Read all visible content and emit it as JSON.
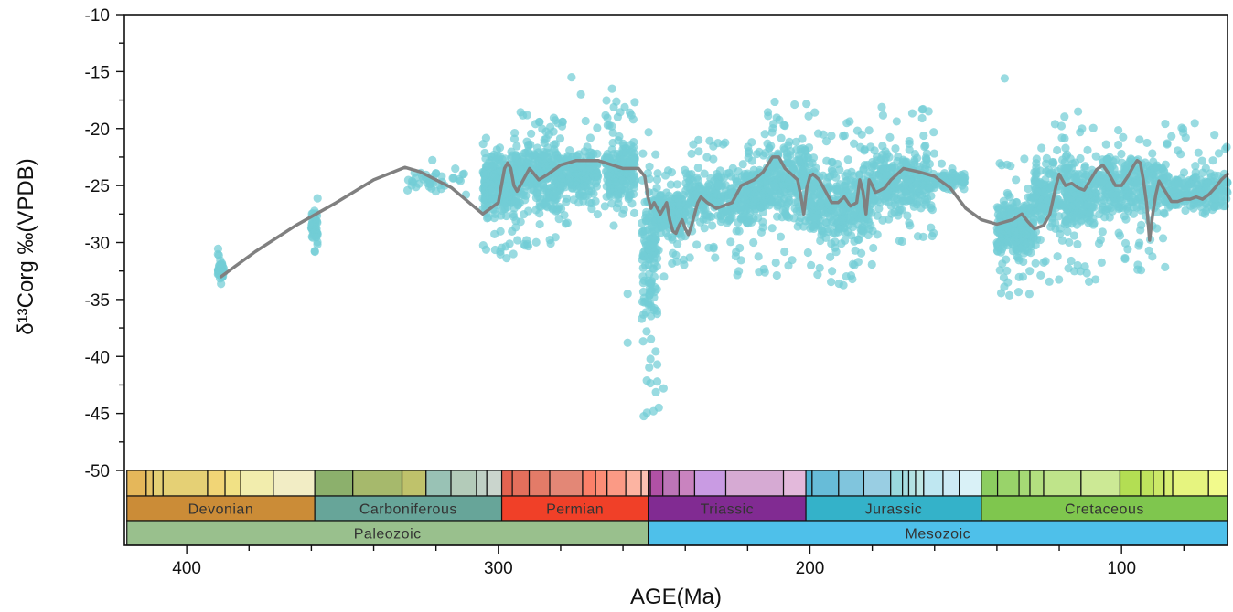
{
  "chart_data": {
    "type": "scatter",
    "xlabel": "AGE(Ma)",
    "ylabel": "δ¹³Corg ‰(VPDB)",
    "x_reversed": true,
    "xlim": [
      420,
      66
    ],
    "ylim": [
      -50,
      -10
    ],
    "x_ticks": [
      400,
      300,
      200,
      100
    ],
    "y_ticks": [
      -10,
      -15,
      -20,
      -25,
      -30,
      -35,
      -40,
      -45,
      -50
    ],
    "colors": {
      "points": "#72cdd6",
      "curve": "#808080"
    },
    "trend_curve": {
      "x": [
        389,
        378,
        365,
        352,
        340,
        330,
        325,
        315,
        305,
        300,
        298,
        297,
        296,
        295,
        294,
        292,
        290,
        287,
        284,
        280,
        275,
        268,
        260,
        255,
        253,
        252,
        251,
        250,
        249,
        248,
        247,
        246,
        245,
        244,
        243,
        242,
        241,
        240,
        239,
        238,
        237,
        236,
        235,
        233,
        230,
        225,
        222,
        218,
        215,
        212,
        210,
        208,
        206,
        204,
        203,
        202,
        201,
        200,
        199,
        197,
        195,
        193,
        191,
        189,
        187,
        185,
        184,
        183,
        182,
        181,
        180,
        179,
        178,
        176,
        174,
        172,
        170,
        165,
        160,
        155,
        150,
        145,
        140,
        135,
        132,
        130,
        128,
        125,
        123,
        121,
        120,
        119,
        118,
        116,
        114,
        112,
        110,
        108,
        106,
        104,
        102,
        100,
        98,
        96,
        95,
        94,
        93,
        92,
        91,
        90,
        89,
        88,
        86,
        84,
        82,
        80,
        78,
        76,
        74,
        72,
        70,
        68,
        66
      ],
      "y": [
        -33,
        -30.8,
        -28.5,
        -26.5,
        -24.5,
        -23.4,
        -23.8,
        -25.2,
        -27.5,
        -26.5,
        -23.5,
        -23.0,
        -23.5,
        -25.0,
        -25.5,
        -24.5,
        -23.5,
        -24.5,
        -24.0,
        -23.2,
        -22.8,
        -22.8,
        -23.5,
        -23.5,
        -24.2,
        -26.0,
        -27.0,
        -26.5,
        -27.0,
        -27.5,
        -27.0,
        -26.5,
        -28.0,
        -29.0,
        -29.2,
        -28.5,
        -28.0,
        -28.8,
        -29.3,
        -28.5,
        -27.5,
        -26.5,
        -26.0,
        -26.5,
        -27.0,
        -26.5,
        -25.0,
        -24.5,
        -23.8,
        -22.5,
        -22.5,
        -23.5,
        -24.0,
        -24.5,
        -25.8,
        -27.5,
        -25.2,
        -24.2,
        -24.0,
        -24.5,
        -25.5,
        -26.5,
        -26.5,
        -26.0,
        -26.8,
        -26.5,
        -24.5,
        -25.5,
        -27.5,
        -24.5,
        -25.0,
        -25.6,
        -25.5,
        -25.2,
        -24.5,
        -24.0,
        -23.5,
        -23.8,
        -24.2,
        -25.2,
        -27.0,
        -28.0,
        -28.4,
        -28.0,
        -27.5,
        -28.2,
        -28.8,
        -28.5,
        -27.5,
        -25.0,
        -24.0,
        -24.5,
        -25.0,
        -24.8,
        -25.2,
        -25.4,
        -24.5,
        -23.6,
        -23.2,
        -24.0,
        -25.0,
        -25.0,
        -24.2,
        -23.2,
        -22.8,
        -23.0,
        -24.5,
        -26.5,
        -29.8,
        -27.5,
        -25.8,
        -24.6,
        -25.5,
        -26.4,
        -26.4,
        -26.2,
        -26.2,
        -26.0,
        -26.2,
        -25.8,
        -25.2,
        -24.5,
        -24.0
      ]
    },
    "scatter_clusters": [
      {
        "x": [
          388,
          390
        ],
        "y_center": -32.5,
        "y_range": [
          -34.5,
          -30.5
        ],
        "count": 40
      },
      {
        "x": [
          358,
          360
        ],
        "y_center": -28.5,
        "y_range": [
          -31,
          -23.5
        ],
        "count": 50
      },
      {
        "x": [
          330,
          310
        ],
        "y_center": -24.5,
        "y_range": [
          -27,
          -22.5
        ],
        "count": 40
      },
      {
        "x": [
          305,
          295
        ],
        "y_center": -25,
        "y_range": [
          -31.5,
          -20
        ],
        "count": 260
      },
      {
        "x": [
          295,
          280
        ],
        "y_center": -24,
        "y_range": [
          -32,
          -18.5
        ],
        "count": 320
      },
      {
        "x": [
          280,
          268
        ],
        "y_center": -24,
        "y_range": [
          -28.5,
          -19
        ],
        "count": 200
      },
      {
        "x": [
          266,
          256
        ],
        "y_center": -23.8,
        "y_range": [
          -29,
          -17.5
        ],
        "count": 220
      },
      {
        "x": [
          254,
          249
        ],
        "y_center": -31,
        "y_range": [
          -45.5,
          -16.5
        ],
        "count": 150
      },
      {
        "x": [
          249,
          240
        ],
        "y_center": -27.5,
        "y_range": [
          -33,
          -23
        ],
        "count": 180
      },
      {
        "x": [
          240,
          215
        ],
        "y_center": -26,
        "y_range": [
          -33,
          -21
        ],
        "count": 380
      },
      {
        "x": [
          215,
          200
        ],
        "y_center": -24.5,
        "y_range": [
          -33,
          -17.5
        ],
        "count": 300
      },
      {
        "x": [
          200,
          180
        ],
        "y_center": -26.5,
        "y_range": [
          -34,
          -18.5
        ],
        "count": 380
      },
      {
        "x": [
          180,
          160
        ],
        "y_center": -24.5,
        "y_range": [
          -31,
          -18
        ],
        "count": 300
      },
      {
        "x": [
          160,
          150
        ],
        "y_center": -24.5,
        "y_range": [
          -26,
          -23
        ],
        "count": 60
      },
      {
        "x": [
          140,
          128
        ],
        "y_center": -28.5,
        "y_range": [
          -35,
          -22.5
        ],
        "count": 250
      },
      {
        "x": [
          128,
          108
        ],
        "y_center": -26,
        "y_range": [
          -33.5,
          -18.5
        ],
        "count": 380
      },
      {
        "x": [
          108,
          86
        ],
        "y_center": -25,
        "y_range": [
          -32.5,
          -19.5
        ],
        "count": 320
      },
      {
        "x": [
          86,
          66
        ],
        "y_center": -25.5,
        "y_range": [
          -27.5,
          -19.5
        ],
        "count": 220
      }
    ],
    "scatter_outliers": [
      {
        "x": 276.5,
        "y": -15.5
      },
      {
        "x": 273.5,
        "y": -17
      },
      {
        "x": 263.5,
        "y": -16.5
      },
      {
        "x": 137.5,
        "y": -15.6
      },
      {
        "x": 249,
        "y": -40.7
      },
      {
        "x": 247,
        "y": -42.8
      },
      {
        "x": 248.5,
        "y": -44.5
      },
      {
        "x": 258.5,
        "y": -38.8
      },
      {
        "x": 258.5,
        "y": -34.5
      }
    ],
    "timescale": {
      "stages": [
        {
          "start": 419.2,
          "end": 413.0,
          "color": "#e5b75a"
        },
        {
          "start": 413.0,
          "end": 410.8,
          "color": "#e5c468"
        },
        {
          "start": 410.8,
          "end": 407.6,
          "color": "#e5d075"
        },
        {
          "start": 407.6,
          "end": 393.3,
          "color": "#e5d075"
        },
        {
          "start": 393.3,
          "end": 387.7,
          "color": "#f1d576"
        },
        {
          "start": 387.7,
          "end": 382.7,
          "color": "#f1e185"
        },
        {
          "start": 382.7,
          "end": 372.2,
          "color": "#f2edad"
        },
        {
          "start": 372.2,
          "end": 358.9,
          "color": "#f2edc5"
        },
        {
          "start": 358.9,
          "end": 346.7,
          "color": "#8cb06c"
        },
        {
          "start": 346.7,
          "end": 330.9,
          "color": "#a6b96c"
        },
        {
          "start": 330.9,
          "end": 323.2,
          "color": "#bfc26b"
        },
        {
          "start": 323.2,
          "end": 315.2,
          "color": "#99c2b5"
        },
        {
          "start": 315.2,
          "end": 307.0,
          "color": "#b3cbb9"
        },
        {
          "start": 307.0,
          "end": 303.7,
          "color": "#bfd0c5"
        },
        {
          "start": 303.7,
          "end": 298.9,
          "color": "#cad5cd"
        },
        {
          "start": 298.9,
          "end": 295.5,
          "color": "#e36350"
        },
        {
          "start": 295.5,
          "end": 290.1,
          "color": "#e36f5c"
        },
        {
          "start": 290.1,
          "end": 283.5,
          "color": "#e37b68"
        },
        {
          "start": 283.5,
          "end": 272.95,
          "color": "#e38776"
        },
        {
          "start": 272.95,
          "end": 268.8,
          "color": "#fb8069"
        },
        {
          "start": 268.8,
          "end": 265.1,
          "color": "#fb8d76"
        },
        {
          "start": 265.1,
          "end": 259.1,
          "color": "#fb9a85"
        },
        {
          "start": 259.1,
          "end": 254.14,
          "color": "#fcb4a2"
        },
        {
          "start": 254.14,
          "end": 251.9,
          "color": "#fcc0b2"
        },
        {
          "start": 251.9,
          "end": 251.2,
          "color": "#a4469f"
        },
        {
          "start": 251.2,
          "end": 247.2,
          "color": "#b051a5"
        },
        {
          "start": 247.2,
          "end": 242.0,
          "color": "#bc75b7"
        },
        {
          "start": 242.0,
          "end": 237.0,
          "color": "#c983bf"
        },
        {
          "start": 237.0,
          "end": 227.0,
          "color": "#c99be3"
        },
        {
          "start": 227.0,
          "end": 208.5,
          "color": "#d6aad3"
        },
        {
          "start": 208.5,
          "end": 201.3,
          "color": "#e3b9db"
        },
        {
          "start": 201.3,
          "end": 199.3,
          "color": "#4eb3d3"
        },
        {
          "start": 199.3,
          "end": 190.8,
          "color": "#67bcd8"
        },
        {
          "start": 190.8,
          "end": 182.7,
          "color": "#80c5dd"
        },
        {
          "start": 182.7,
          "end": 174.1,
          "color": "#99cee3"
        },
        {
          "start": 174.1,
          "end": 170.3,
          "color": "#9ad9dd"
        },
        {
          "start": 170.3,
          "end": 168.3,
          "color": "#a6dde0"
        },
        {
          "start": 168.3,
          "end": 166.1,
          "color": "#b3e2e3"
        },
        {
          "start": 166.1,
          "end": 163.5,
          "color": "#bfe7e5"
        },
        {
          "start": 163.5,
          "end": 157.3,
          "color": "#bfe7f1"
        },
        {
          "start": 157.3,
          "end": 152.1,
          "color": "#cceaf5"
        },
        {
          "start": 152.1,
          "end": 145.0,
          "color": "#d9f1f7"
        },
        {
          "start": 145.0,
          "end": 139.8,
          "color": "#8ccd60"
        },
        {
          "start": 139.8,
          "end": 132.9,
          "color": "#99d36a"
        },
        {
          "start": 132.9,
          "end": 129.4,
          "color": "#a6d975"
        },
        {
          "start": 129.4,
          "end": 125.0,
          "color": "#b3df7f"
        },
        {
          "start": 125.0,
          "end": 113.0,
          "color": "#bfe48a"
        },
        {
          "start": 113.0,
          "end": 100.5,
          "color": "#cce995"
        },
        {
          "start": 100.5,
          "end": 93.9,
          "color": "#b3de53"
        },
        {
          "start": 93.9,
          "end": 89.8,
          "color": "#bfe35d"
        },
        {
          "start": 89.8,
          "end": 86.3,
          "color": "#cce868"
        },
        {
          "start": 86.3,
          "end": 83.6,
          "color": "#d9ef74"
        },
        {
          "start": 83.6,
          "end": 72.1,
          "color": "#e6f47f"
        },
        {
          "start": 72.1,
          "end": 66.0,
          "color": "#f2fa8c"
        }
      ],
      "periods": [
        {
          "name": "Devonian",
          "start": 419.2,
          "end": 358.9,
          "color": "#cb8c37"
        },
        {
          "name": "Carboniferous",
          "start": 358.9,
          "end": 298.9,
          "color": "#67a599"
        },
        {
          "name": "Permian",
          "start": 298.9,
          "end": 251.9,
          "color": "#f04028"
        },
        {
          "name": "Triassic",
          "start": 251.9,
          "end": 201.3,
          "color": "#812b92"
        },
        {
          "name": "Jurassic",
          "start": 201.3,
          "end": 145.0,
          "color": "#34b2c9"
        },
        {
          "name": "Cretaceous",
          "start": 145.0,
          "end": 66.0,
          "color": "#7fc64e"
        }
      ],
      "eras": [
        {
          "name": "Paleozoic",
          "start": 419.2,
          "end": 251.9,
          "color": "#99c08d"
        },
        {
          "name": "Mesozoic",
          "start": 251.9,
          "end": 66.0,
          "color": "#4ec0ea"
        }
      ]
    }
  }
}
